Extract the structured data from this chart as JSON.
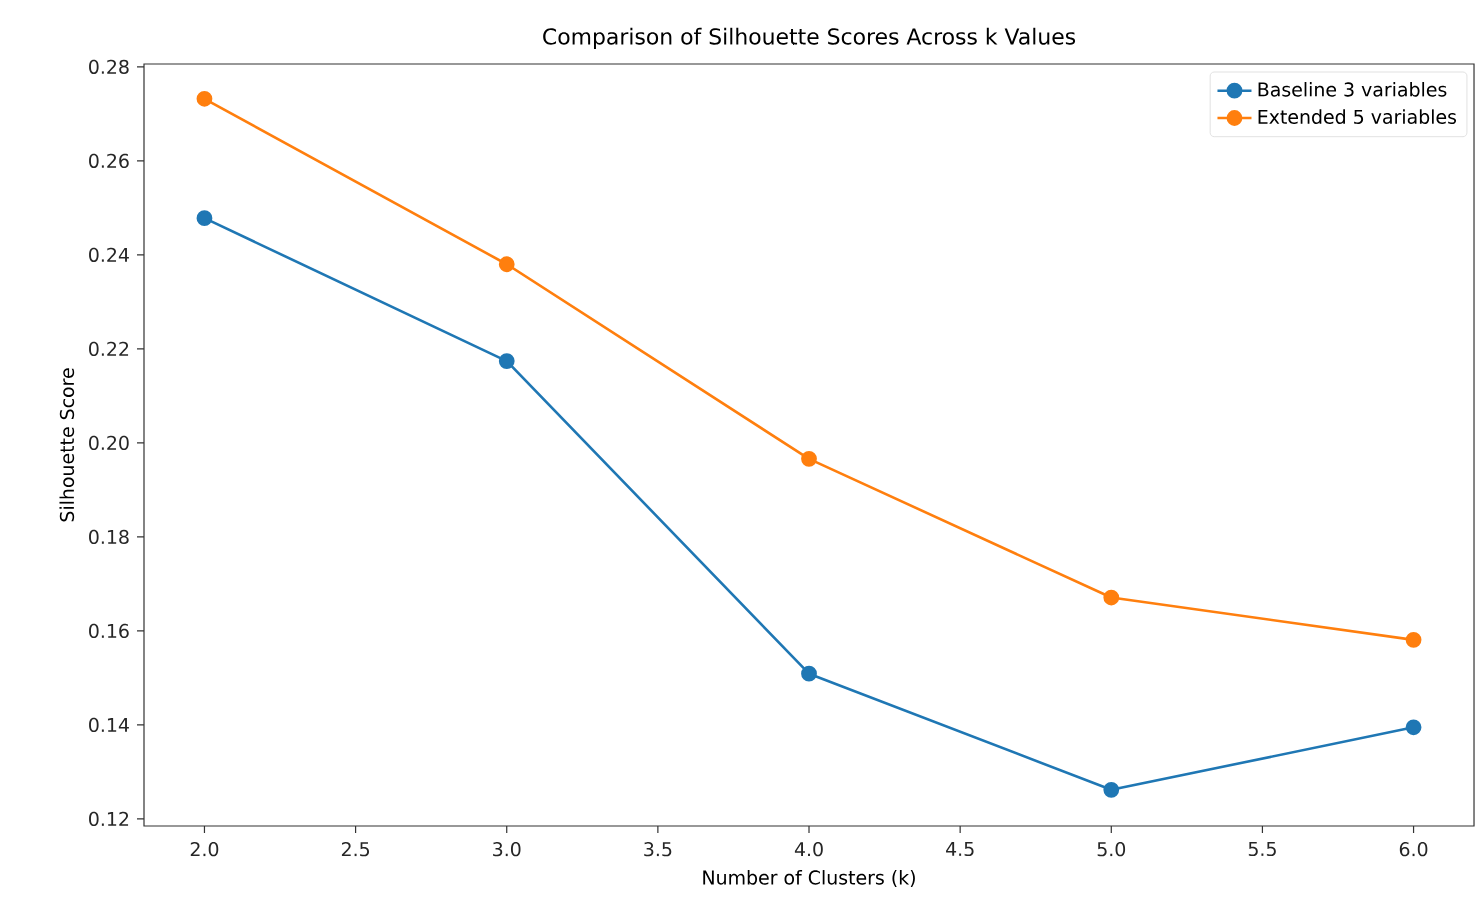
{
  "chart_data": {
    "type": "line",
    "title": "Comparison of Silhouette Scores Across k Values",
    "xlabel": "Number of Clusters (k)",
    "ylabel": "Silhouette Score",
    "x": [
      2,
      3,
      4,
      5,
      6
    ],
    "series": [
      {
        "name": "Baseline 3 variables",
        "color": "#1f77b4",
        "values": [
          0.2478,
          0.2174,
          0.1509,
          0.1262,
          0.1395
        ]
      },
      {
        "name": "Extended 5 variables",
        "color": "#ff7f0e",
        "values": [
          0.2732,
          0.238,
          0.1966,
          0.1671,
          0.1581
        ]
      }
    ],
    "xlim": [
      1.8,
      6.2
    ],
    "ylim": [
      0.1185,
      0.2806
    ],
    "xticks": [
      {
        "value": 2,
        "label": "2.0"
      },
      {
        "value": 2.5,
        "label": "2.5"
      },
      {
        "value": 3,
        "label": "3.0"
      },
      {
        "value": 3.5,
        "label": "3.5"
      },
      {
        "value": 4,
        "label": "4.0"
      },
      {
        "value": 4.5,
        "label": "4.5"
      },
      {
        "value": 5,
        "label": "5.0"
      },
      {
        "value": 5.5,
        "label": "5.5"
      },
      {
        "value": 6,
        "label": "6.0"
      }
    ],
    "yticks": [
      {
        "value": 0.12,
        "label": "0.12"
      },
      {
        "value": 0.14,
        "label": "0.14"
      },
      {
        "value": 0.16,
        "label": "0.16"
      },
      {
        "value": 0.18,
        "label": "0.18"
      },
      {
        "value": 0.2,
        "label": "0.20"
      },
      {
        "value": 0.22,
        "label": "0.22"
      },
      {
        "value": 0.24,
        "label": "0.24"
      },
      {
        "value": 0.26,
        "label": "0.26"
      },
      {
        "value": 0.28,
        "label": "0.28"
      }
    ],
    "grid": false,
    "legend": "top right",
    "marker": "circle",
    "line_style": "solid"
  }
}
